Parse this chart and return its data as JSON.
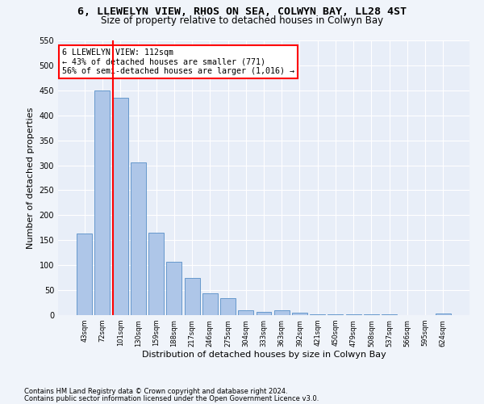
{
  "title": "6, LLEWELYN VIEW, RHOS ON SEA, COLWYN BAY, LL28 4ST",
  "subtitle": "Size of property relative to detached houses in Colwyn Bay",
  "xlabel": "Distribution of detached houses by size in Colwyn Bay",
  "ylabel": "Number of detached properties",
  "categories": [
    "43sqm",
    "72sqm",
    "101sqm",
    "130sqm",
    "159sqm",
    "188sqm",
    "217sqm",
    "246sqm",
    "275sqm",
    "304sqm",
    "333sqm",
    "363sqm",
    "392sqm",
    "421sqm",
    "450sqm",
    "479sqm",
    "508sqm",
    "537sqm",
    "566sqm",
    "595sqm",
    "624sqm"
  ],
  "values": [
    163,
    450,
    435,
    305,
    165,
    107,
    74,
    44,
    34,
    9,
    7,
    9,
    5,
    2,
    2,
    1,
    1,
    1,
    0,
    0,
    3
  ],
  "bar_color": "#aec6e8",
  "bar_edgecolor": "#6699cc",
  "redline_index": 2,
  "annotation_text": "6 LLEWELYN VIEW: 112sqm\n← 43% of detached houses are smaller (771)\n56% of semi-detached houses are larger (1,016) →",
  "annotation_boxcolor": "white",
  "annotation_edgecolor": "red",
  "ylim": [
    0,
    550
  ],
  "yticks": [
    0,
    50,
    100,
    150,
    200,
    250,
    300,
    350,
    400,
    450,
    500,
    550
  ],
  "title_fontsize": 9.5,
  "subtitle_fontsize": 8.5,
  "xlabel_fontsize": 8,
  "ylabel_fontsize": 8,
  "footer_line1": "Contains HM Land Registry data © Crown copyright and database right 2024.",
  "footer_line2": "Contains public sector information licensed under the Open Government Licence v3.0.",
  "bg_color": "#f0f4fa",
  "plot_bg_color": "#e8eef8"
}
